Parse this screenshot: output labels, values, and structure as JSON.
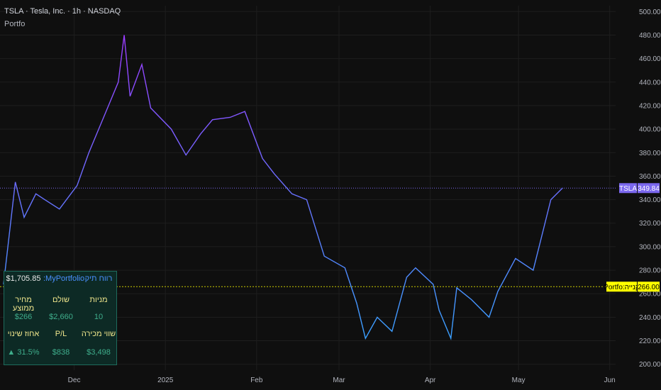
{
  "header": {
    "symbol_line": "TSLA · Tesla, Inc. · 1h · NASDAQ",
    "indicator": "Portfo"
  },
  "price_tag": {
    "symbol": "TSLA",
    "price": "349.84"
  },
  "buy_tag": {
    "label": "Portfo:קנייה",
    "price": "266.00"
  },
  "panel": {
    "title": "רווח תיק",
    "name": ":MyPortfolio",
    "profit": "$1,705.85",
    "headers1": [
      "מחיר ממוצע",
      "שולם",
      "מניות"
    ],
    "values1": [
      "$266",
      "$2,660",
      "10"
    ],
    "headers2": [
      "אחוז שינוי",
      "P/L",
      "שווי מכירה"
    ],
    "values2": [
      "▲ 31.5%",
      "$838",
      "$3,498"
    ]
  },
  "colors": {
    "line_start": "#9b3cff",
    "line_end": "#3aa0ff",
    "buy": "#ffff00",
    "price_tag_bg": "#7b68ee"
  },
  "chart_data": {
    "type": "line",
    "ylim": [
      195,
      505
    ],
    "yticks": [
      "500.00",
      "480.00",
      "460.00",
      "440.00",
      "420.00",
      "400.00",
      "380.00",
      "360.00",
      "340.00",
      "320.00",
      "300.00",
      "280.00",
      "260.00",
      "240.00",
      "220.00",
      "200.00"
    ],
    "xticks": [
      "Dec",
      "2025",
      "Feb",
      "Mar",
      "Apr",
      "May",
      "Jun"
    ],
    "x": [
      "2024-11-07",
      "2024-11-11",
      "2024-11-14",
      "2024-11-18",
      "2024-11-21",
      "2024-11-26",
      "2024-12-02",
      "2024-12-06",
      "2024-12-11",
      "2024-12-16",
      "2024-12-18",
      "2024-12-20",
      "2024-12-24",
      "2024-12-27",
      "2025-01-03",
      "2025-01-08",
      "2025-01-13",
      "2025-01-17",
      "2025-01-23",
      "2025-01-28",
      "2025-02-03",
      "2025-02-07",
      "2025-02-13",
      "2025-02-18",
      "2025-02-24",
      "2025-03-03",
      "2025-03-07",
      "2025-03-10",
      "2025-03-14",
      "2025-03-19",
      "2025-03-24",
      "2025-03-27",
      "2025-04-02",
      "2025-04-04",
      "2025-04-08",
      "2025-04-10",
      "2025-04-15",
      "2025-04-21",
      "2025-04-24",
      "2025-04-30",
      "2025-05-06",
      "2025-05-12",
      "2025-05-16"
    ],
    "values": [
      268,
      355,
      325,
      345,
      340,
      332,
      352,
      380,
      410,
      440,
      480,
      428,
      455,
      418,
      400,
      378,
      396,
      408,
      410,
      415,
      375,
      362,
      345,
      340,
      292,
      282,
      252,
      222,
      240,
      228,
      274,
      282,
      268,
      246,
      222,
      265,
      255,
      240,
      262,
      290,
      280,
      340,
      350
    ],
    "series": [
      {
        "name": "TSLA"
      }
    ],
    "buy_price": 266,
    "last_price": 349.84,
    "grid": true
  }
}
